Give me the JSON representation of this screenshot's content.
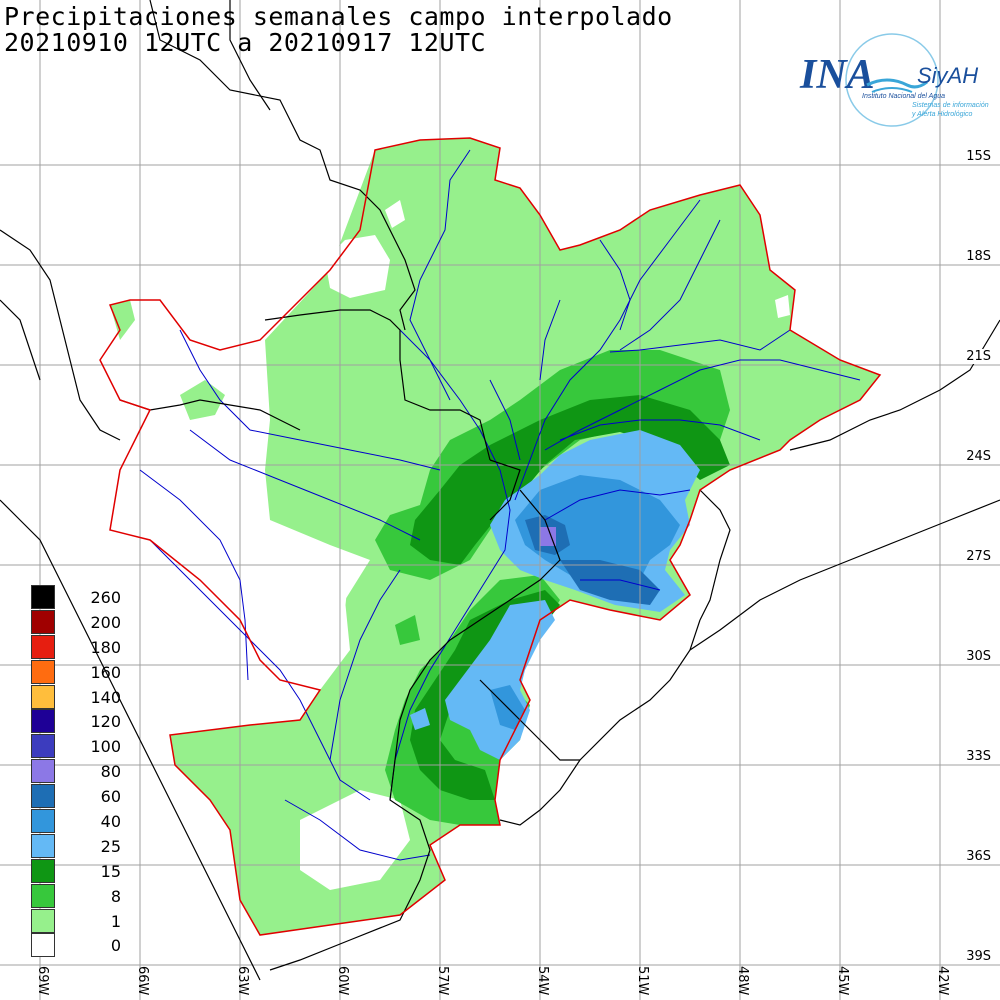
{
  "title": {
    "line1": "Precipitaciones semanales campo interpolado",
    "line2": "20210910 12UTC a 20210917 12UTC"
  },
  "logo": {
    "brand": "INA",
    "system": "SiyAH",
    "institution": "Instituto Nacional del Agua",
    "subtitle_line1": "Sistemas de información",
    "subtitle_line2": "y Alerta Hidrológico",
    "brand_color": "#1a4f9c",
    "accent_color": "#3aa6d8"
  },
  "lat_labels": [
    "15S",
    "18S",
    "21S",
    "24S",
    "27S",
    "30S",
    "33S",
    "36S",
    "39S"
  ],
  "lon_labels": [
    "69W",
    "66W",
    "63W",
    "60W",
    "57W",
    "54W",
    "51W",
    "48W",
    "45W",
    "42W"
  ],
  "legend": [
    {
      "value": "260",
      "color": "#000000"
    },
    {
      "value": "200",
      "color": "#a00000"
    },
    {
      "value": "180",
      "color": "#e61e10"
    },
    {
      "value": "160",
      "color": "#ff6c10"
    },
    {
      "value": "140",
      "color": "#ffbe3c"
    },
    {
      "value": "120",
      "color": "#1e0096"
    },
    {
      "value": "100",
      "color": "#3c3cbe"
    },
    {
      "value": "80",
      "color": "#8c78e6"
    },
    {
      "value": "60",
      "color": "#1e6eb4"
    },
    {
      "value": "40",
      "color": "#3296dc"
    },
    {
      "value": "25",
      "color": "#64b9f5"
    },
    {
      "value": "15",
      "color": "#0f9614"
    },
    {
      "value": "8",
      "color": "#37c83c"
    },
    {
      "value": "1",
      "color": "#96f08c"
    },
    {
      "value": "0",
      "color": "#ffffff"
    }
  ],
  "colors": {
    "basin_outline": "#e00000",
    "borders": "#000000",
    "rivers": "#0000cc",
    "grid": "#a0a0a0"
  }
}
